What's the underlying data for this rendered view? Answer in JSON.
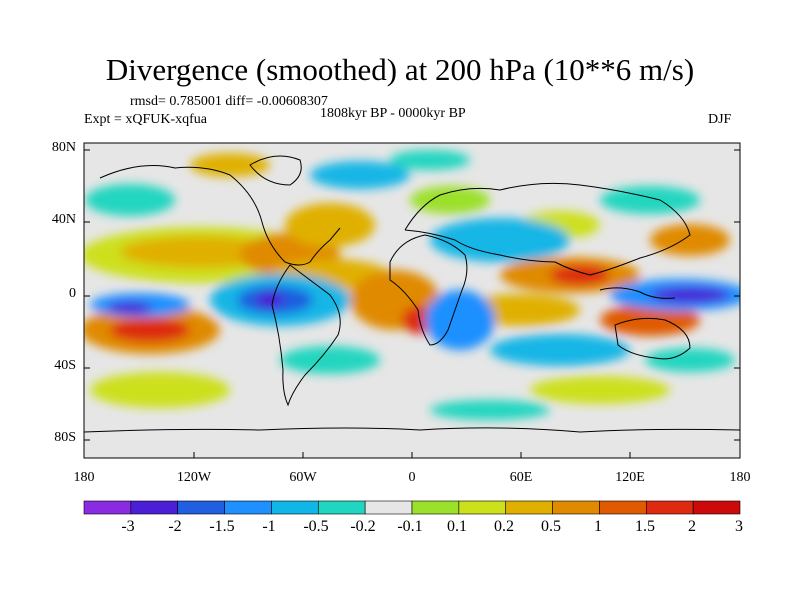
{
  "title": "Divergence (smoothed) at 200 hPa (10**6 m/s)",
  "stats_text": "rmsd= 0.785001  diff= -0.00608307",
  "period": "1808kyr BP - 0000kyr BP",
  "experiment": "Expt = xQFUK-xqfua",
  "season": "DJF",
  "map": {
    "projection": "cylindrical-equidistant",
    "lon_range": [
      -180,
      180
    ],
    "lat_range": [
      -90,
      90
    ],
    "background_color": "#e6e6e6",
    "lat_ticks": [
      "80N",
      "40N",
      "0",
      "40S",
      "80S"
    ],
    "lon_ticks": [
      "180",
      "120W",
      "60W",
      "0",
      "60E",
      "120E",
      "180"
    ]
  },
  "colorbar": {
    "colors": [
      "#8a2be2",
      "#4a1fd6",
      "#1f5fe0",
      "#1e90ff",
      "#12b6e6",
      "#20d6c0",
      "#e6e6e6",
      "#9be02a",
      "#cde01c",
      "#e0b000",
      "#e08a00",
      "#e05a00",
      "#dd2a10",
      "#cc0a0a"
    ],
    "labels": [
      "-3",
      "-2",
      "-1.5",
      "-1",
      "-0.5",
      "-0.2",
      "-0.1",
      "0.1",
      "0.2",
      "0.5",
      "1",
      "1.5",
      "2",
      "3"
    ]
  }
}
